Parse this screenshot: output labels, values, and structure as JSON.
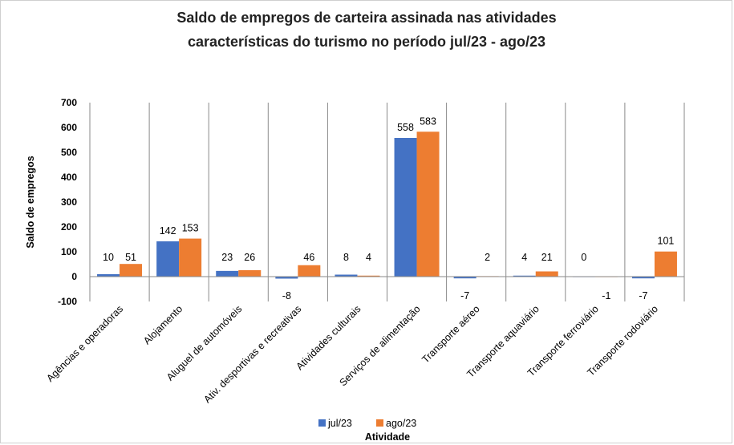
{
  "chart_data": {
    "type": "bar",
    "title": "Saldo de empregos de carteira assinada nas atividades",
    "subtitle": "características do turismo no período jul/23 - ago/23",
    "xlabel": "Atividade",
    "ylabel": "Saldo de empregos",
    "ylim": [
      -100,
      700
    ],
    "yticks": [
      -100,
      0,
      100,
      200,
      300,
      400,
      500,
      600,
      700
    ],
    "grid": false,
    "legend_position": "bottom",
    "categories": [
      "Agências e operadoras",
      "Alojamento",
      "Aluguel de automóveis",
      "Ativ. desportivas e recreativas",
      "Atividades culturais",
      "Serviços de alimentação",
      "Transporte aéreo",
      "Transporte aquaviário",
      "Transporte ferroviário",
      "Transporte rodoviário"
    ],
    "series": [
      {
        "name": "jul/23",
        "color": "#4472C4",
        "values": [
          10,
          142,
          23,
          -8,
          8,
          558,
          -7,
          4,
          0,
          -7
        ]
      },
      {
        "name": "ago/23",
        "color": "#ED7D31",
        "values": [
          51,
          153,
          26,
          46,
          4,
          583,
          2,
          21,
          -1,
          101
        ]
      }
    ]
  }
}
